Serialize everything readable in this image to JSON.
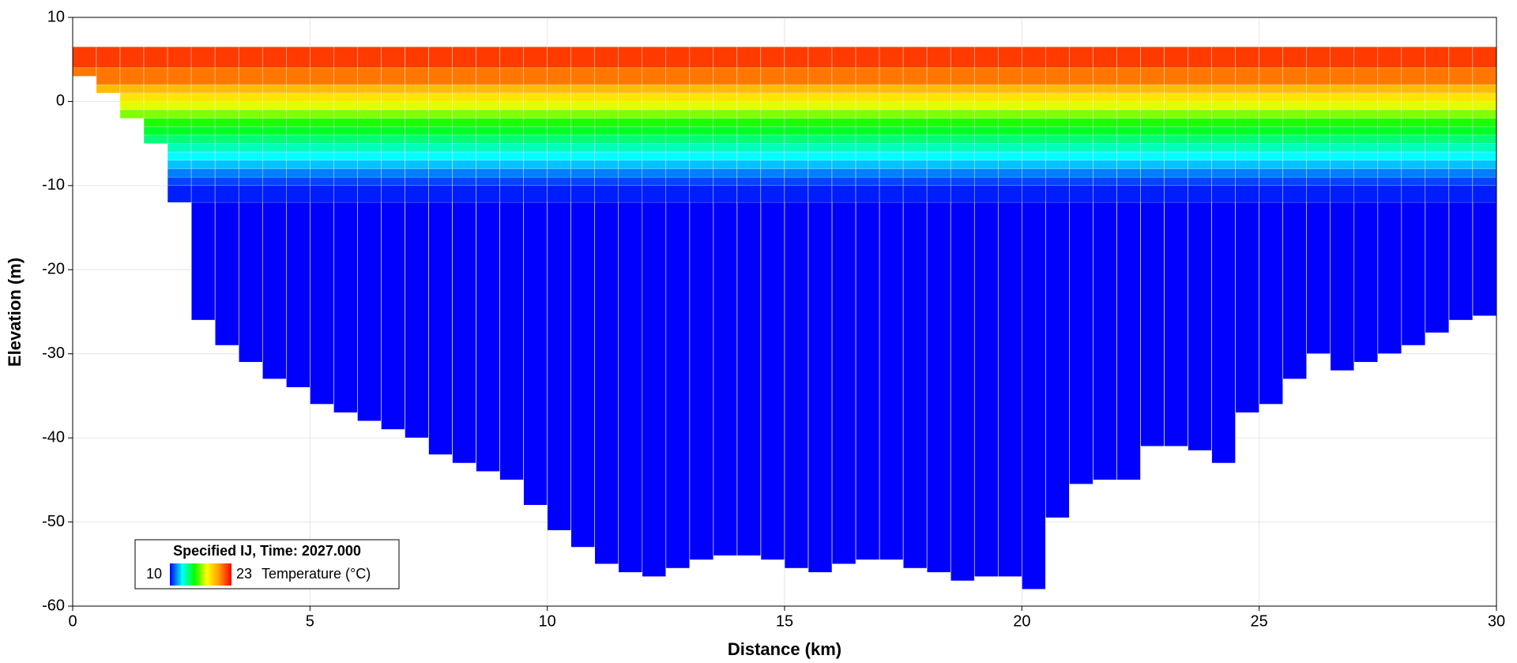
{
  "chart_data": {
    "type": "section",
    "x_label": "Distance (km)",
    "y_label": "Elevation (m)",
    "xlim": [
      0,
      30
    ],
    "xticks": [
      0,
      5,
      10,
      15,
      20,
      25,
      30
    ],
    "ylim": [
      -60,
      10
    ],
    "yticks": [
      -60,
      -50,
      -40,
      -30,
      -20,
      -10,
      0,
      10
    ],
    "grid": true,
    "surface": 6.5,
    "column_edges": [
      0,
      0.5,
      1,
      1.5,
      2,
      2.5,
      3,
      3.5,
      4,
      4.5,
      5,
      5.5,
      6,
      6.5,
      7,
      7.5,
      8,
      8.5,
      9,
      9.5,
      10,
      10.5,
      11,
      11.5,
      12,
      12.5,
      13,
      13.5,
      14,
      14.5,
      15,
      15.5,
      16,
      16.5,
      17,
      17.5,
      18,
      18.5,
      19,
      19.5,
      20,
      20.5,
      21,
      21.5,
      22,
      22.5,
      23,
      23.5,
      24,
      24.5,
      25,
      25.5,
      26,
      26.5,
      27,
      27.5,
      28,
      28.5,
      29,
      29.5,
      30
    ],
    "column_bottoms": [
      3,
      1,
      -2,
      -5,
      -12,
      -26,
      -29,
      -31,
      -33,
      -34,
      -36,
      -37,
      -38,
      -39,
      -40,
      -42,
      -43,
      -44,
      -45,
      -48,
      -51,
      -53,
      -55,
      -56,
      -56.5,
      -55.5,
      -54.5,
      -54,
      -54,
      -54.5,
      -55.5,
      -56,
      -55,
      -54.5,
      -54.5,
      -55.5,
      -56,
      -57,
      -56.5,
      -56.5,
      -58,
      -49.5,
      -45.5,
      -45,
      -45,
      -41,
      -41,
      -41.5,
      -43,
      -37,
      -36,
      -33,
      -30,
      -32,
      -31,
      -30,
      -29,
      -27.5,
      -26,
      -25.5
    ],
    "bottom_temperature": 10,
    "layer_edges": [
      6.5,
      4,
      2,
      1,
      0,
      -1,
      -2,
      -3,
      -4,
      -5,
      -6,
      -7,
      -8,
      -9,
      -10,
      -12
    ],
    "layer_temperatures": [
      22,
      21,
      19.5,
      18.5,
      17.5,
      16.5,
      15.5,
      14.8,
      14,
      13.3,
      12.6,
      12,
      11.3,
      10.7,
      10.3
    ],
    "legend": {
      "title": "Specified IJ, Time: 2027.000",
      "label": "Temperature (°C)",
      "min": 10,
      "max": 23,
      "position": "lower left"
    },
    "colormap": [
      "#0000ff",
      "#00ffff",
      "#00ff00",
      "#ffff00",
      "#ff9900",
      "#ff0000"
    ]
  }
}
